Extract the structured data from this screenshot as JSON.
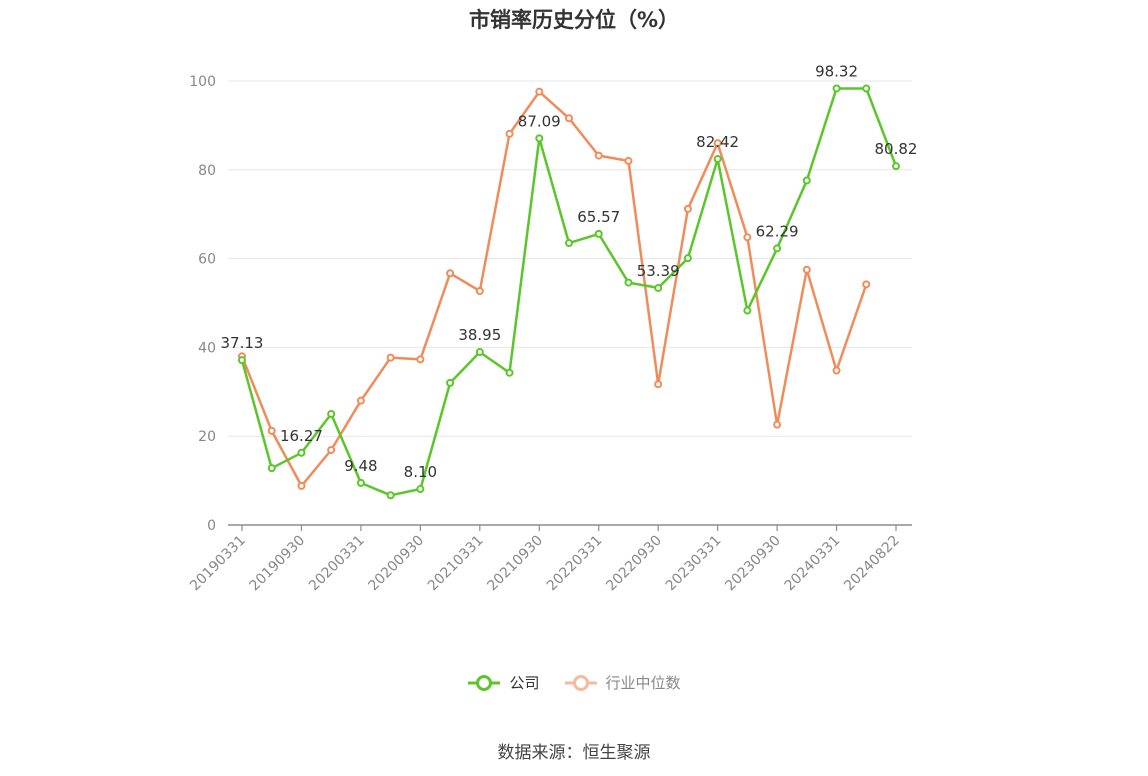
{
  "chart_data": {
    "type": "line",
    "title": "市销率历史分位（%）",
    "ylim": [
      0,
      100
    ],
    "yticks": [
      0,
      20,
      40,
      60,
      80,
      100
    ],
    "grid": true,
    "legend_placement": "bottom",
    "x": [
      "20190331",
      "20190630",
      "20190930",
      "20191231",
      "20200331",
      "20200630",
      "20200930",
      "20201231",
      "20210331",
      "20210630",
      "20210930",
      "20211231",
      "20220331",
      "20220630",
      "20220930",
      "20221231",
      "20230331",
      "20230630",
      "20230930",
      "20231231",
      "20240331",
      "20240630",
      "20240822"
    ],
    "xticks_shown": [
      "20190331",
      "20190930",
      "20200331",
      "20200930",
      "20210331",
      "20210930",
      "20220331",
      "20220930",
      "20230331",
      "20230930",
      "20240331",
      "20240822"
    ],
    "series": [
      {
        "name": "公司",
        "color": "#5ac629",
        "values": [
          37.13,
          12.8,
          16.27,
          25.0,
          9.48,
          6.7,
          8.1,
          32.0,
          38.95,
          34.3,
          87.09,
          63.5,
          65.57,
          54.6,
          53.39,
          60.1,
          82.42,
          48.3,
          62.29,
          77.6,
          98.32,
          98.3,
          80.82
        ],
        "labels": [
          "37.13",
          null,
          "16.27",
          null,
          "9.48",
          null,
          "8.10",
          null,
          "38.95",
          null,
          "87.09",
          null,
          "65.57",
          null,
          "53.39",
          null,
          "82.42",
          null,
          "62.29",
          null,
          "98.32",
          null,
          "80.82"
        ]
      },
      {
        "name": "行业中位数",
        "color": "#f08c5a",
        "values": [
          38.0,
          21.2,
          8.8,
          16.9,
          28.0,
          37.7,
          37.3,
          56.7,
          52.7,
          88.1,
          97.6,
          91.6,
          83.2,
          82.0,
          31.7,
          71.2,
          86.0,
          64.8,
          22.6,
          57.5,
          34.8,
          54.2,
          null
        ]
      }
    ]
  },
  "legend": {
    "company": "公司",
    "industry": "行业中位数"
  },
  "source": "数据来源：恒生聚源"
}
